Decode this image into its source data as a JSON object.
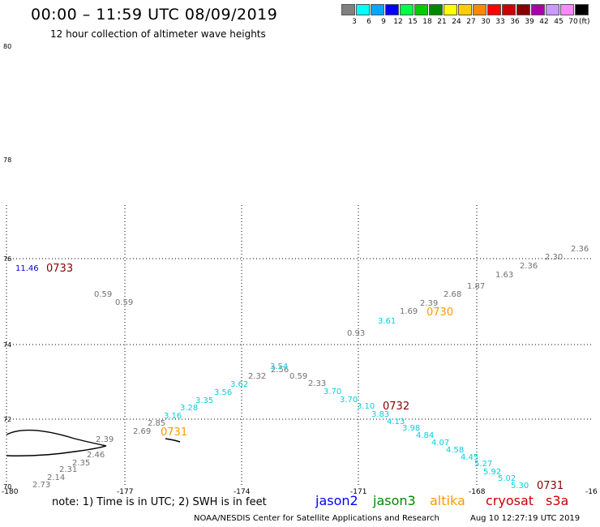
{
  "title": "00:00 – 11:59 UTC 08/09/2019",
  "subtitle": "12 hour collection of altimeter wave heights",
  "legend": {
    "unit": "(ft)",
    "items": [
      {
        "label": "3",
        "color": "#808080"
      },
      {
        "label": "6",
        "color": "#00ffff"
      },
      {
        "label": "9",
        "color": "#00a8ff"
      },
      {
        "label": "12",
        "color": "#0000ff"
      },
      {
        "label": "15",
        "color": "#00ff44"
      },
      {
        "label": "18",
        "color": "#00cc00"
      },
      {
        "label": "21",
        "color": "#008800"
      },
      {
        "label": "24",
        "color": "#ffff00"
      },
      {
        "label": "27",
        "color": "#ffcc00"
      },
      {
        "label": "30",
        "color": "#ff8800"
      },
      {
        "label": "33",
        "color": "#ff0000"
      },
      {
        "label": "36",
        "color": "#cc0000"
      },
      {
        "label": "39",
        "color": "#880000"
      },
      {
        "label": "42",
        "color": "#aa00aa"
      },
      {
        "label": "45",
        "color": "#cc99ff"
      },
      {
        "label": "70",
        "color": "#ff88ff"
      },
      {
        "label": "",
        "color": "#000000"
      }
    ]
  },
  "axes": {
    "lat_labels": [
      "80",
      "78",
      "76",
      "74",
      "72",
      "70"
    ],
    "lon_labels": [
      "-180",
      "-177",
      "-174",
      "-171",
      "-168",
      "-16"
    ]
  },
  "colors": {
    "gray": "#707070",
    "cyan": "#00d0e0",
    "altika": "#ff9900",
    "cryosat": "#880000",
    "blue": "#0000cc",
    "jason2": "#0000ff",
    "jason3": "#008800",
    "s3a": "#cc0000"
  },
  "track_gray": {
    "heights": [
      "2.73",
      "2.14",
      "2.31",
      "2.35",
      "2.46",
      "2.39",
      "2.69",
      "2.85",
      "2.32",
      "2.56",
      "0.59",
      "2.33",
      "0.93",
      "1.69",
      "2.39",
      "2.68",
      "1.87",
      "1.63",
      "2.36",
      "2.30",
      "2.36",
      "0.59",
      "0.59"
    ]
  },
  "track_cyan": {
    "heights": [
      "3.16",
      "3.28",
      "3.35",
      "3.56",
      "3.62",
      "3.54",
      "3.70",
      "3.70",
      "3.10",
      "3.83",
      "4.13",
      "3.98",
      "4.84",
      "4.07",
      "4.58",
      "4.45",
      "5.27",
      "5.92",
      "5.02",
      "5.30",
      "3.61"
    ]
  },
  "track_blue": {
    "heights": [
      "11.46"
    ]
  },
  "times": [
    "0733",
    "0731",
    "0730",
    "0732",
    "0731"
  ],
  "note": "note:  1) Time is in UTC;  2) SWH is in feet",
  "satellites": {
    "jason2": "jason2",
    "jason3": "jason3",
    "altika": "altika",
    "cryosat": "cryosat",
    "s3a": "s3a"
  },
  "credit": "NOAA/NESDIS Center for Satellite Applications and Research",
  "credit_time": "Aug 10 12:27:19 UTC 2019"
}
